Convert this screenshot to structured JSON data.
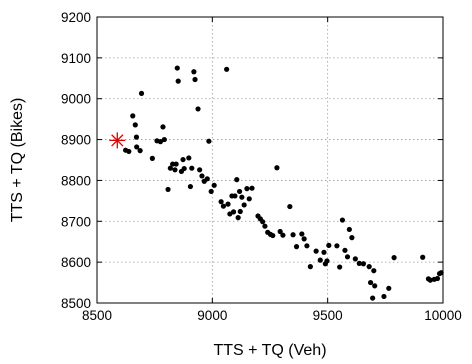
{
  "chart_data": {
    "type": "scatter",
    "title": "",
    "xlabel": "TTS + TQ (Veh)",
    "ylabel": "TTS + TQ (Bikes)",
    "xlim": [
      8500,
      10000
    ],
    "ylim": [
      8500,
      9200
    ],
    "xticks": [
      8500,
      9000,
      9500,
      10000
    ],
    "yticks": [
      8500,
      8600,
      8700,
      8800,
      8900,
      9000,
      9100,
      9200
    ],
    "xtick_labels": [
      "8500",
      "9000",
      "9500",
      "10000"
    ],
    "ytick_labels": [
      "8500",
      "8600",
      "8700",
      "8800",
      "8900",
      "9000",
      "9100",
      "9200"
    ],
    "grid": true,
    "point_color": "#000000",
    "highlight_color": "#e00000",
    "highlight": {
      "x": 8588,
      "y": 8898,
      "marker": "asterisk"
    },
    "series": [
      {
        "values": [
          {
            "x": 8624,
            "y": 8874
          },
          {
            "x": 8638,
            "y": 8871
          },
          {
            "x": 8655,
            "y": 8958
          },
          {
            "x": 8666,
            "y": 8936
          },
          {
            "x": 8671,
            "y": 8906
          },
          {
            "x": 8672,
            "y": 8882
          },
          {
            "x": 8687,
            "y": 8873
          },
          {
            "x": 8693,
            "y": 9013
          },
          {
            "x": 8740,
            "y": 8854
          },
          {
            "x": 8760,
            "y": 8897
          },
          {
            "x": 8775,
            "y": 8895
          },
          {
            "x": 8786,
            "y": 8931
          },
          {
            "x": 8792,
            "y": 8900
          },
          {
            "x": 8808,
            "y": 8778
          },
          {
            "x": 8818,
            "y": 8830
          },
          {
            "x": 8828,
            "y": 8840
          },
          {
            "x": 8838,
            "y": 8826
          },
          {
            "x": 8843,
            "y": 8840
          },
          {
            "x": 8848,
            "y": 9075
          },
          {
            "x": 8852,
            "y": 9043
          },
          {
            "x": 8866,
            "y": 8822
          },
          {
            "x": 8873,
            "y": 8851
          },
          {
            "x": 8878,
            "y": 8829
          },
          {
            "x": 8898,
            "y": 8855
          },
          {
            "x": 8905,
            "y": 8785
          },
          {
            "x": 8911,
            "y": 8830
          },
          {
            "x": 8920,
            "y": 9066
          },
          {
            "x": 8925,
            "y": 9047
          },
          {
            "x": 8938,
            "y": 8975
          },
          {
            "x": 8945,
            "y": 8826
          },
          {
            "x": 8955,
            "y": 8811
          },
          {
            "x": 8965,
            "y": 8798
          },
          {
            "x": 8978,
            "y": 8804
          },
          {
            "x": 8985,
            "y": 8896
          },
          {
            "x": 8995,
            "y": 8773
          },
          {
            "x": 9008,
            "y": 8788
          },
          {
            "x": 9038,
            "y": 8748
          },
          {
            "x": 9048,
            "y": 8737
          },
          {
            "x": 9062,
            "y": 9072
          },
          {
            "x": 9068,
            "y": 8742
          },
          {
            "x": 9076,
            "y": 8718
          },
          {
            "x": 9085,
            "y": 8762
          },
          {
            "x": 9092,
            "y": 8723
          },
          {
            "x": 9098,
            "y": 8762
          },
          {
            "x": 9106,
            "y": 8802
          },
          {
            "x": 9112,
            "y": 8709
          },
          {
            "x": 9118,
            "y": 8773
          },
          {
            "x": 9121,
            "y": 8724
          },
          {
            "x": 9128,
            "y": 8759
          },
          {
            "x": 9138,
            "y": 8740
          },
          {
            "x": 9150,
            "y": 8780
          },
          {
            "x": 9160,
            "y": 8755
          },
          {
            "x": 9172,
            "y": 8781
          },
          {
            "x": 9198,
            "y": 8713
          },
          {
            "x": 9208,
            "y": 8706
          },
          {
            "x": 9218,
            "y": 8699
          },
          {
            "x": 9228,
            "y": 8688
          },
          {
            "x": 9240,
            "y": 8673
          },
          {
            "x": 9252,
            "y": 8668
          },
          {
            "x": 9262,
            "y": 8665
          },
          {
            "x": 9280,
            "y": 8831
          },
          {
            "x": 9294,
            "y": 8675
          },
          {
            "x": 9306,
            "y": 8666
          },
          {
            "x": 9336,
            "y": 8736
          },
          {
            "x": 9350,
            "y": 8667
          },
          {
            "x": 9365,
            "y": 8638
          },
          {
            "x": 9388,
            "y": 8669
          },
          {
            "x": 9398,
            "y": 8657
          },
          {
            "x": 9410,
            "y": 8640
          },
          {
            "x": 9425,
            "y": 8589
          },
          {
            "x": 9450,
            "y": 8627
          },
          {
            "x": 9468,
            "y": 8605
          },
          {
            "x": 9484,
            "y": 8624
          },
          {
            "x": 9490,
            "y": 8596
          },
          {
            "x": 9497,
            "y": 8603
          },
          {
            "x": 9505,
            "y": 8641
          },
          {
            "x": 9540,
            "y": 8640
          },
          {
            "x": 9552,
            "y": 8588
          },
          {
            "x": 9564,
            "y": 8703
          },
          {
            "x": 9575,
            "y": 8629
          },
          {
            "x": 9586,
            "y": 8613
          },
          {
            "x": 9594,
            "y": 8680
          },
          {
            "x": 9605,
            "y": 8660
          },
          {
            "x": 9620,
            "y": 8608
          },
          {
            "x": 9637,
            "y": 8597
          },
          {
            "x": 9655,
            "y": 8596
          },
          {
            "x": 9680,
            "y": 8589
          },
          {
            "x": 9686,
            "y": 8550
          },
          {
            "x": 9695,
            "y": 8512
          },
          {
            "x": 9700,
            "y": 8579
          },
          {
            "x": 9704,
            "y": 8542
          },
          {
            "x": 9744,
            "y": 8516
          },
          {
            "x": 9765,
            "y": 8536
          },
          {
            "x": 9788,
            "y": 8611
          },
          {
            "x": 9912,
            "y": 8612
          },
          {
            "x": 9937,
            "y": 8559
          },
          {
            "x": 9945,
            "y": 8556
          },
          {
            "x": 9962,
            "y": 8558
          },
          {
            "x": 9976,
            "y": 8560
          },
          {
            "x": 9985,
            "y": 8572
          },
          {
            "x": 9992,
            "y": 8574
          }
        ]
      }
    ]
  }
}
